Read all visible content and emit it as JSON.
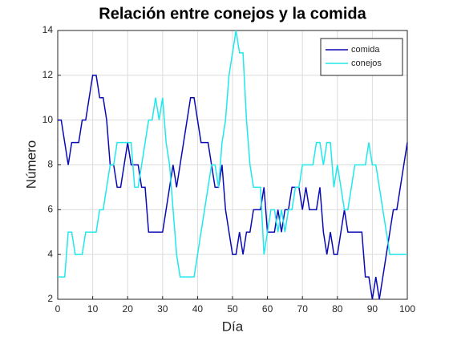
{
  "chart_data": {
    "type": "line",
    "title": "Relación entre conejos y la comida",
    "xlabel": "Día",
    "ylabel": "Número",
    "x": [
      0,
      1,
      2,
      3,
      4,
      5,
      6,
      7,
      8,
      9,
      10,
      11,
      12,
      13,
      14,
      15,
      16,
      17,
      18,
      19,
      20,
      21,
      22,
      23,
      24,
      25,
      26,
      27,
      28,
      29,
      30,
      31,
      32,
      33,
      34,
      35,
      36,
      37,
      38,
      39,
      40,
      41,
      42,
      43,
      44,
      45,
      46,
      47,
      48,
      49,
      50,
      51,
      52,
      53,
      54,
      55,
      56,
      57,
      58,
      59,
      60,
      61,
      62,
      63,
      64,
      65,
      66,
      67,
      68,
      69,
      70,
      71,
      72,
      73,
      74,
      75,
      76,
      77,
      78,
      79,
      80,
      81,
      82,
      83,
      84,
      85,
      86,
      87,
      88,
      89,
      90,
      91,
      92,
      93,
      94,
      95,
      96,
      97,
      98,
      99,
      100
    ],
    "series": [
      {
        "name": "comida",
        "color": "#0a0ab4",
        "values": [
          10,
          10,
          9,
          8,
          9,
          9,
          9,
          10,
          10,
          11,
          12,
          12,
          11,
          11,
          10,
          8,
          8,
          7,
          7,
          8,
          9,
          8,
          8,
          8,
          7,
          7,
          5,
          5,
          5,
          5,
          5,
          6,
          7,
          8,
          7,
          8,
          9,
          10,
          11,
          11,
          10,
          9,
          9,
          9,
          8,
          7,
          7,
          8,
          6,
          5,
          4,
          4,
          5,
          4,
          5,
          5,
          6,
          6,
          6,
          7,
          5,
          5,
          5,
          6,
          5,
          6,
          6,
          7,
          7,
          7,
          6,
          7,
          6,
          6,
          6,
          7,
          5,
          4,
          5,
          4,
          4,
          5,
          6,
          5,
          5,
          5,
          5,
          5,
          3,
          3,
          2,
          3,
          2,
          3,
          4,
          5,
          6,
          6,
          7,
          8,
          9
        ]
      },
      {
        "name": "conejos",
        "color": "#20e8ec",
        "values": [
          3,
          3,
          3,
          5,
          5,
          4,
          4,
          4,
          5,
          5,
          5,
          5,
          6,
          6,
          7,
          8,
          8,
          9,
          9,
          9,
          9,
          9,
          7,
          7,
          8,
          9,
          10,
          10,
          11,
          10,
          11,
          9,
          8,
          6,
          4,
          3,
          3,
          3,
          3,
          3,
          4,
          5,
          6,
          7,
          8,
          8,
          7,
          9,
          10,
          12,
          13,
          14,
          13,
          13,
          10,
          8,
          7,
          7,
          7,
          4,
          5,
          6,
          6,
          5,
          6,
          5,
          6,
          6,
          7,
          7,
          8,
          8,
          8,
          8,
          9,
          9,
          8,
          9,
          9,
          7,
          8,
          7,
          6,
          6,
          7,
          8,
          8,
          8,
          8,
          9,
          8,
          8,
          7,
          6,
          5,
          4,
          4,
          4,
          4,
          4,
          4
        ]
      }
    ],
    "xlim": [
      0,
      100
    ],
    "xticks": [
      0,
      10,
      20,
      30,
      40,
      50,
      60,
      70,
      80,
      90,
      100
    ],
    "ylim": [
      2,
      14
    ],
    "yticks": [
      2,
      4,
      6,
      8,
      10,
      12,
      14
    ],
    "grid": true,
    "legend": "top-right"
  }
}
